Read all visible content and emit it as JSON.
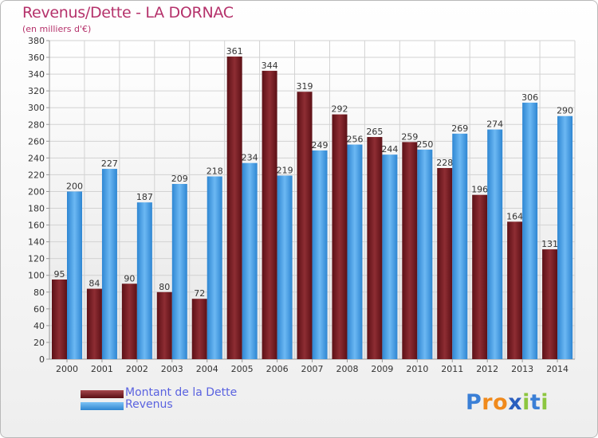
{
  "title": "Revenus/Dette - LA DORNAC",
  "subtitle": "(en milliers d'€)",
  "chart_data": {
    "type": "bar",
    "categories": [
      "2000",
      "2001",
      "2002",
      "2003",
      "2004",
      "2005",
      "2006",
      "2007",
      "2008",
      "2009",
      "2010",
      "2011",
      "2012",
      "2013",
      "2014"
    ],
    "series": [
      {
        "name": "Montant de la Dette",
        "color": "#7a1f26",
        "values": [
          95,
          84,
          90,
          80,
          72,
          361,
          344,
          319,
          292,
          265,
          259,
          228,
          196,
          164,
          131
        ]
      },
      {
        "name": "Revenus",
        "color": "#3d9be6",
        "values": [
          200,
          227,
          187,
          209,
          218,
          234,
          219,
          249,
          256,
          244,
          250,
          269,
          274,
          306,
          290
        ]
      }
    ],
    "ylim": [
      0,
      380
    ],
    "ytick_step": 20,
    "grid": true,
    "legend_position": "bottom-left"
  },
  "legend": {
    "debt_label": "Montant de la Dette",
    "revenue_label": "Revenus"
  },
  "logo": {
    "text": "Proxiti",
    "letters": [
      {
        "ch": "P",
        "color": "#3a7fd6"
      },
      {
        "ch": "r",
        "color": "#f08a1c"
      },
      {
        "ch": "o",
        "color": "#f08a1c"
      },
      {
        "ch": "x",
        "color": "#2a5fbf"
      },
      {
        "ch": "i",
        "color": "#8cc63f"
      },
      {
        "ch": "t",
        "color": "#3a7fd6"
      },
      {
        "ch": "i",
        "color": "#8cc63f"
      }
    ]
  }
}
